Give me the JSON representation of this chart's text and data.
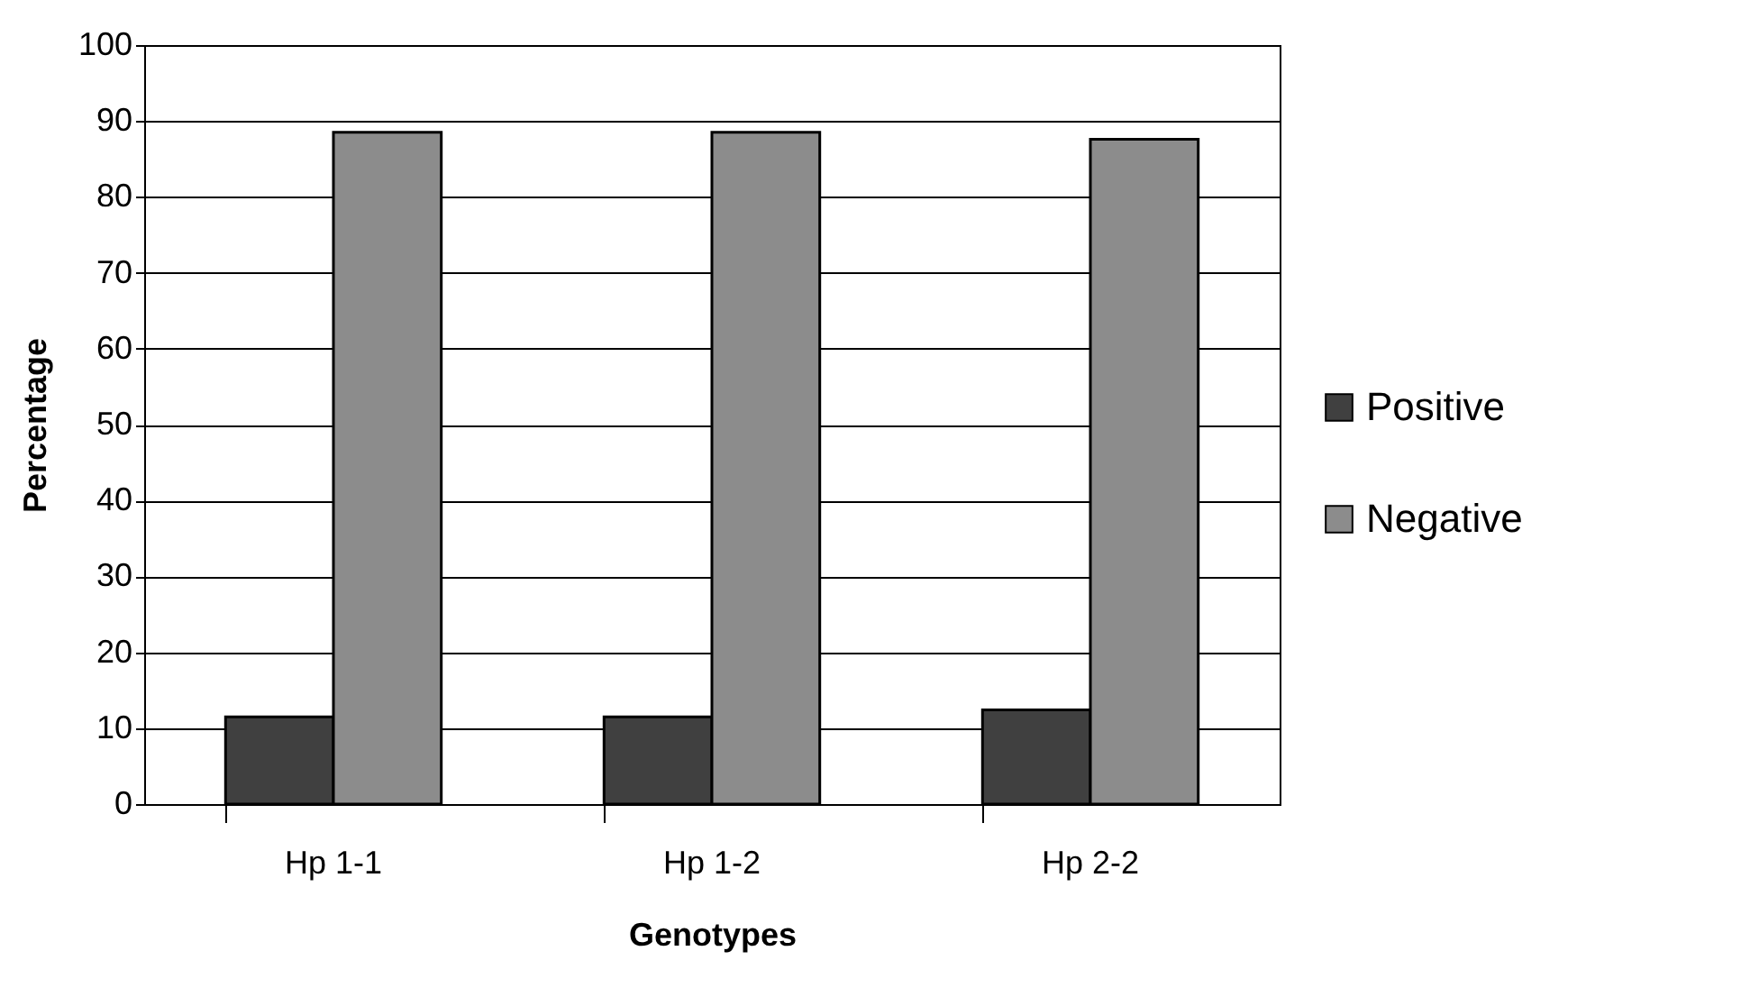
{
  "chart_data": {
    "type": "bar",
    "xlabel": "Genotypes",
    "ylabel": "Percentage",
    "categories": [
      "Hp 1-1",
      "Hp 1-2",
      "Hp 2-2"
    ],
    "series": [
      {
        "name": "Positive",
        "color": "#404040",
        "values": [
          11.5,
          11.5,
          12.4
        ]
      },
      {
        "name": "Negative",
        "color": "#8c8c8c",
        "values": [
          88.5,
          88.5,
          87.6
        ]
      }
    ],
    "ylim": [
      0,
      100
    ],
    "yticks": [
      0,
      10,
      20,
      30,
      40,
      50,
      60,
      70,
      80,
      90,
      100
    ],
    "grid": "y",
    "legend": "right"
  }
}
